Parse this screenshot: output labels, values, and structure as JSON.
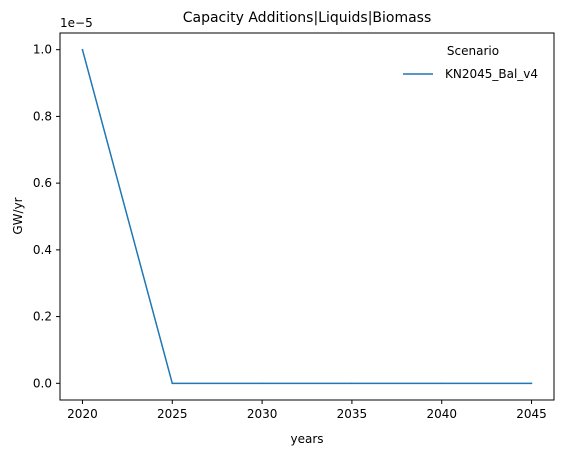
{
  "chart_data": {
    "type": "line",
    "title": "Capacity Additions|Liquids|Biomass",
    "xlabel": "years",
    "ylabel": "GW/yr",
    "y_offset_text": "1e−5",
    "x": [
      2020,
      2025,
      2030,
      2035,
      2040,
      2045
    ],
    "series": [
      {
        "name": "KN2045_Bal_v4",
        "color": "#1f77b4",
        "values": [
          1e-05,
          0.0,
          0.0,
          0.0,
          0.0,
          0.0
        ]
      }
    ],
    "xlim": [
      2018.75,
      2046.25
    ],
    "ylim": [
      -5e-07,
      1.05e-05
    ],
    "x_ticks": [
      2020,
      2025,
      2030,
      2035,
      2040,
      2045
    ],
    "x_tick_labels": [
      "2020",
      "2025",
      "2030",
      "2035",
      "2040",
      "2045"
    ],
    "y_ticks": [
      0.0,
      2e-06,
      4e-06,
      6e-06,
      8e-06,
      1e-05
    ],
    "y_tick_labels": [
      "0.0",
      "0.2",
      "0.4",
      "0.6",
      "0.8",
      "1.0"
    ],
    "legend": {
      "title": "Scenario",
      "position": "top-right",
      "frame": false
    },
    "grid": false
  }
}
